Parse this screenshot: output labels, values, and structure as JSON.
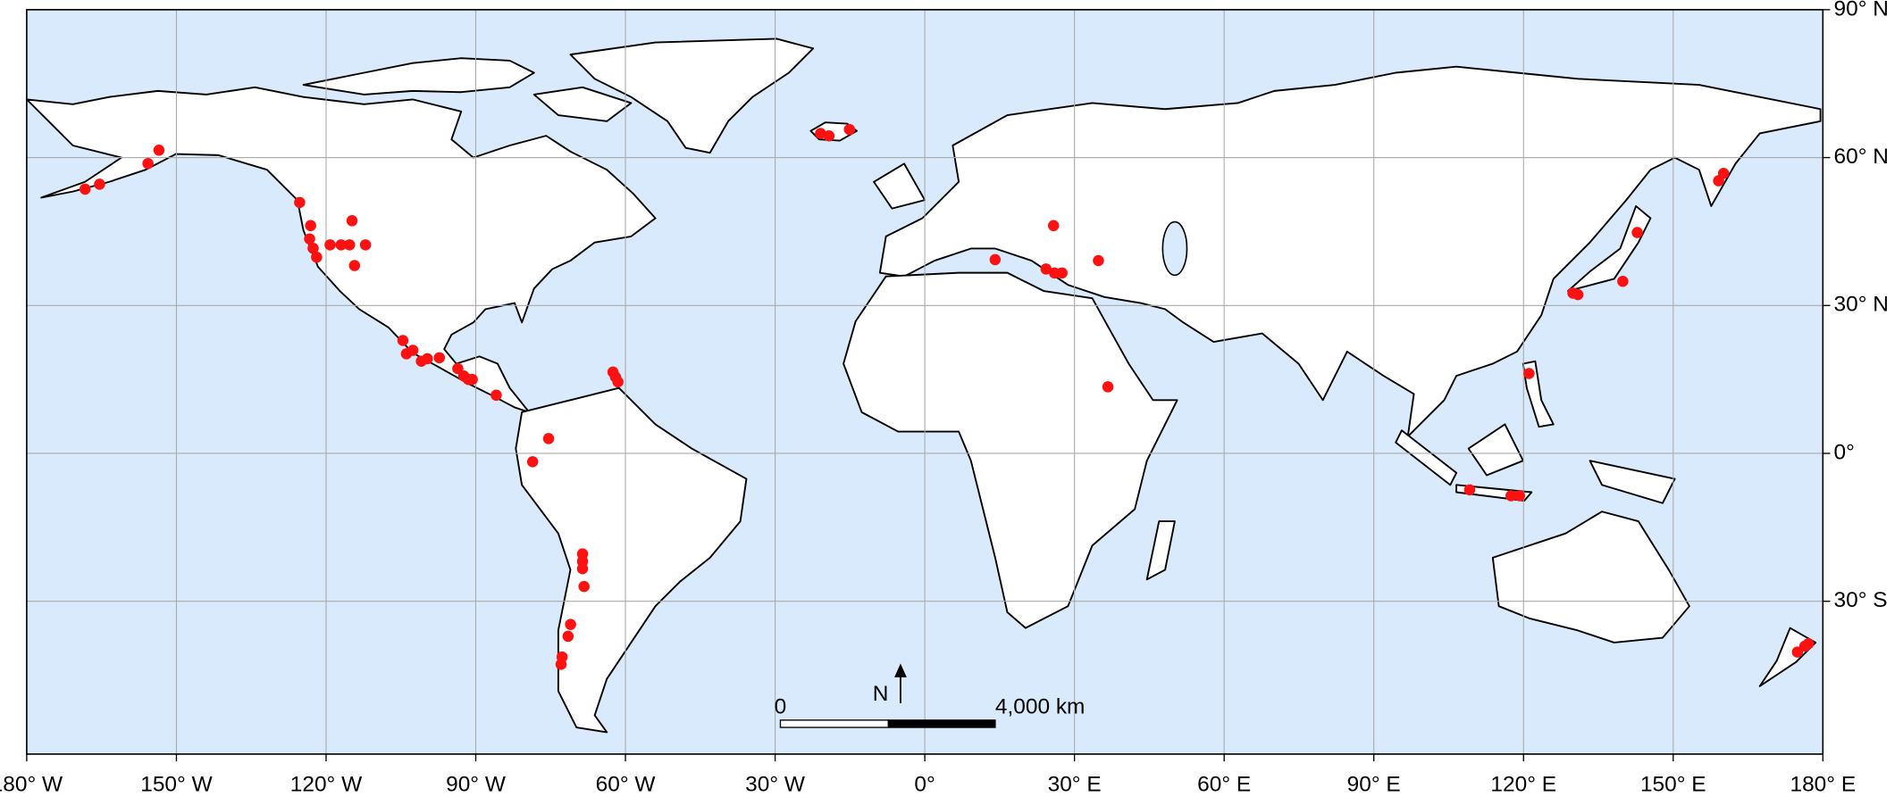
{
  "map": {
    "xlim": [
      -180,
      180
    ],
    "ylim": [
      -61,
      90
    ],
    "xticks": [
      {
        "value": -180,
        "label": "180° W"
      },
      {
        "value": -150,
        "label": "150° W"
      },
      {
        "value": -120,
        "label": "120° W"
      },
      {
        "value": -90,
        "label": "90° W"
      },
      {
        "value": -60,
        "label": "60° W"
      },
      {
        "value": -30,
        "label": "30° W"
      },
      {
        "value": 0,
        "label": "0°"
      },
      {
        "value": 30,
        "label": "30° E"
      },
      {
        "value": 60,
        "label": "60° E"
      },
      {
        "value": 90,
        "label": "90° E"
      },
      {
        "value": 120,
        "label": "120° E"
      },
      {
        "value": 150,
        "label": "150° E"
      },
      {
        "value": 180,
        "label": "180° E"
      }
    ],
    "yticks": [
      {
        "value": 90,
        "label": "90° N"
      },
      {
        "value": 60,
        "label": "60° N"
      },
      {
        "value": 30,
        "label": "30° N"
      },
      {
        "value": 0,
        "label": "0°"
      },
      {
        "value": -30,
        "label": "30° S"
      }
    ],
    "grid": true,
    "points": {
      "color": "#ff1111",
      "lon": [
        -168.3,
        -165.4,
        -155.7,
        -153.5,
        -125.3,
        -123.1,
        -123.3,
        -122.6,
        -121.9,
        -119.2,
        -117.0,
        -115.3,
        -114.8,
        -114.3,
        -112.1,
        -104.6,
        -103.9,
        -102.6,
        -100.9,
        -99.7,
        -97.3,
        -93.6,
        -92.4,
        -91.5,
        -90.7,
        -85.9,
        -62.5,
        -62.0,
        -61.5,
        -75.4,
        -78.6,
        -68.6,
        -68.6,
        -68.6,
        -68.3,
        -71.0,
        -71.5,
        -72.7,
        -72.9,
        -20.9,
        -19.2,
        -15.1,
        14.1,
        24.3,
        26.0,
        27.5,
        25.8,
        34.8,
        36.7,
        121.1,
        109.2,
        117.5,
        119.2,
        129.9,
        130.9,
        139.9,
        142.8,
        159.1,
        160.1,
        174.9,
        176.4,
        177.1
      ],
      "lat": [
        53.6,
        54.6,
        58.8,
        61.5,
        50.9,
        46.2,
        43.5,
        41.6,
        39.8,
        42.3,
        42.3,
        42.3,
        47.2,
        38.1,
        42.3,
        22.9,
        20.2,
        20.9,
        18.7,
        19.2,
        19.4,
        17.2,
        15.7,
        15.0,
        15.0,
        11.8,
        16.5,
        15.5,
        14.5,
        3.0,
        -1.7,
        -20.4,
        -21.9,
        -23.4,
        -27.0,
        -34.7,
        -37.1,
        -41.3,
        -42.8,
        64.9,
        64.4,
        65.7,
        39.3,
        37.4,
        36.6,
        36.6,
        46.2,
        39.1,
        13.5,
        16.2,
        -7.4,
        -8.6,
        -8.6,
        32.5,
        32.2,
        34.9,
        44.8,
        55.3,
        56.8,
        -40.3,
        -39.1,
        -38.6
      ]
    },
    "scale_bar": {
      "zero_label": "0",
      "end_label": "4,000 km",
      "north_label": "N"
    }
  }
}
